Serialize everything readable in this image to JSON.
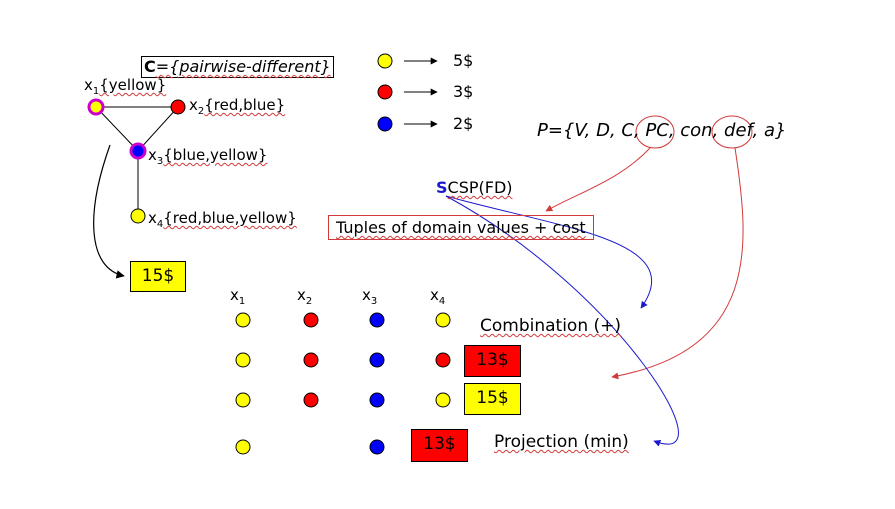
{
  "constraint": {
    "prefix": "C",
    "text": "={pairwise-different}"
  },
  "colors": {
    "yellow": "#ffff00",
    "red": "#ff0000",
    "blue": "#0000ff",
    "magenta": "#cc00cc",
    "annotation_red": "#d23a3a",
    "annotation_blue": "#1a1acc"
  },
  "graph": {
    "nodes": [
      {
        "var": "x",
        "index": "1",
        "domain": "{yellow}"
      },
      {
        "var": "x",
        "index": "2",
        "domain": "{red,blue}"
      },
      {
        "var": "x",
        "index": "3",
        "domain": "{blue,yellow}"
      },
      {
        "var": "x",
        "index": "4",
        "domain": "{red,blue,yellow}"
      }
    ]
  },
  "legend": [
    {
      "color": "yellow",
      "price": "5$"
    },
    {
      "color": "red",
      "price": "3$"
    },
    {
      "color": "blue",
      "price": "2$"
    }
  ],
  "result_cost": "15$",
  "p_set": "P={V, D, C, PC, con, def, a}",
  "csp_label": {
    "s": "S",
    "rest": "CSP(FD)"
  },
  "tuples_label": "Tuples of domain values + cost",
  "table": {
    "headers": [
      {
        "var": "x",
        "index": "1"
      },
      {
        "var": "x",
        "index": "2"
      },
      {
        "var": "x",
        "index": "3"
      },
      {
        "var": "x",
        "index": "4"
      }
    ],
    "rows": [
      {
        "cells": [
          "yellow",
          "red",
          "blue",
          "yellow"
        ],
        "cost": ""
      },
      {
        "cells": [
          "yellow",
          "red",
          "blue",
          "red"
        ],
        "cost": "13$"
      },
      {
        "cells": [
          "yellow",
          "red",
          "blue",
          "yellow"
        ],
        "cost": "15$"
      },
      {
        "cells": [
          "yellow",
          "",
          "blue",
          ""
        ],
        "cost": "13$"
      }
    ]
  },
  "combination_label": "Combination (+)",
  "projection_label": "Projection (min)"
}
